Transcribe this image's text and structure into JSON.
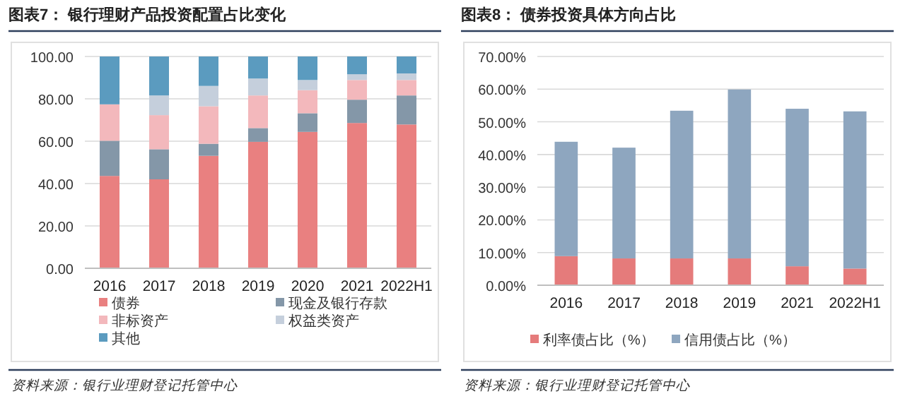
{
  "chart_data": [
    {
      "type": "bar",
      "stacked": true,
      "title": "图表7： 银行理财产品投资配置占比变化",
      "categories": [
        "2016",
        "2017",
        "2018",
        "2019",
        "2020",
        "2021",
        "2022H1"
      ],
      "series": [
        {
          "name": "债券",
          "color": "#e98080",
          "values": [
            43.6,
            42.0,
            53.1,
            59.7,
            64.4,
            68.6,
            67.9
          ]
        },
        {
          "name": "现金及银行存款",
          "color": "#8497a8",
          "values": [
            16.6,
            14.2,
            5.7,
            6.5,
            8.8,
            11.0,
            13.7
          ]
        },
        {
          "name": "非标资产",
          "color": "#f3b8bc",
          "values": [
            17.2,
            16.1,
            17.7,
            15.4,
            10.9,
            9.3,
            7.3
          ]
        },
        {
          "name": "权益类资产",
          "color": "#c5cfdc",
          "values": [
            0,
            9.3,
            9.6,
            8.0,
            4.8,
            2.7,
            3.1
          ]
        },
        {
          "name": "其他",
          "color": "#5b9bbf",
          "values": [
            22.6,
            18.4,
            13.9,
            10.4,
            11.1,
            8.4,
            8.0
          ]
        }
      ],
      "ylim": [
        0,
        100
      ],
      "yticks": [
        {
          "value": 0,
          "label": "0.00"
        },
        {
          "value": 20,
          "label": "20.00"
        },
        {
          "value": 40,
          "label": "40.00"
        },
        {
          "value": 60,
          "label": "60.00"
        },
        {
          "value": 80,
          "label": "80.00"
        },
        {
          "value": 100,
          "label": "100.00"
        }
      ],
      "grid": "y",
      "legend": "bottom",
      "annotations": [
        "资料来源：银行业理财登记托管中心"
      ]
    },
    {
      "type": "bar",
      "stacked": true,
      "title": "图表8： 债券投资具体方向占比",
      "categories": [
        "2016",
        "2017",
        "2018",
        "2019",
        "2021",
        "2022H1"
      ],
      "series": [
        {
          "name": "利率债占比（%）",
          "color": "#e57b7b",
          "values": [
            8.9,
            8.2,
            8.2,
            8.2,
            5.8,
            5.1
          ]
        },
        {
          "name": "信用债占比（%）",
          "color": "#8ea6bf",
          "values": [
            35.0,
            33.9,
            45.2,
            51.7,
            48.2,
            48.1
          ]
        }
      ],
      "ylim": [
        0,
        70
      ],
      "yticks": [
        {
          "value": 0,
          "label": "0.00%"
        },
        {
          "value": 10,
          "label": "10.00%"
        },
        {
          "value": 20,
          "label": "20.00%"
        },
        {
          "value": 30,
          "label": "30.00%"
        },
        {
          "value": 40,
          "label": "40.00%"
        },
        {
          "value": 50,
          "label": "50.00%"
        },
        {
          "value": 60,
          "label": "60.00%"
        },
        {
          "value": 70,
          "label": "70.00%"
        }
      ],
      "grid": "y",
      "legend": "bottom",
      "annotations": [
        "资料来源：银行业理财登记托管中心"
      ]
    }
  ]
}
